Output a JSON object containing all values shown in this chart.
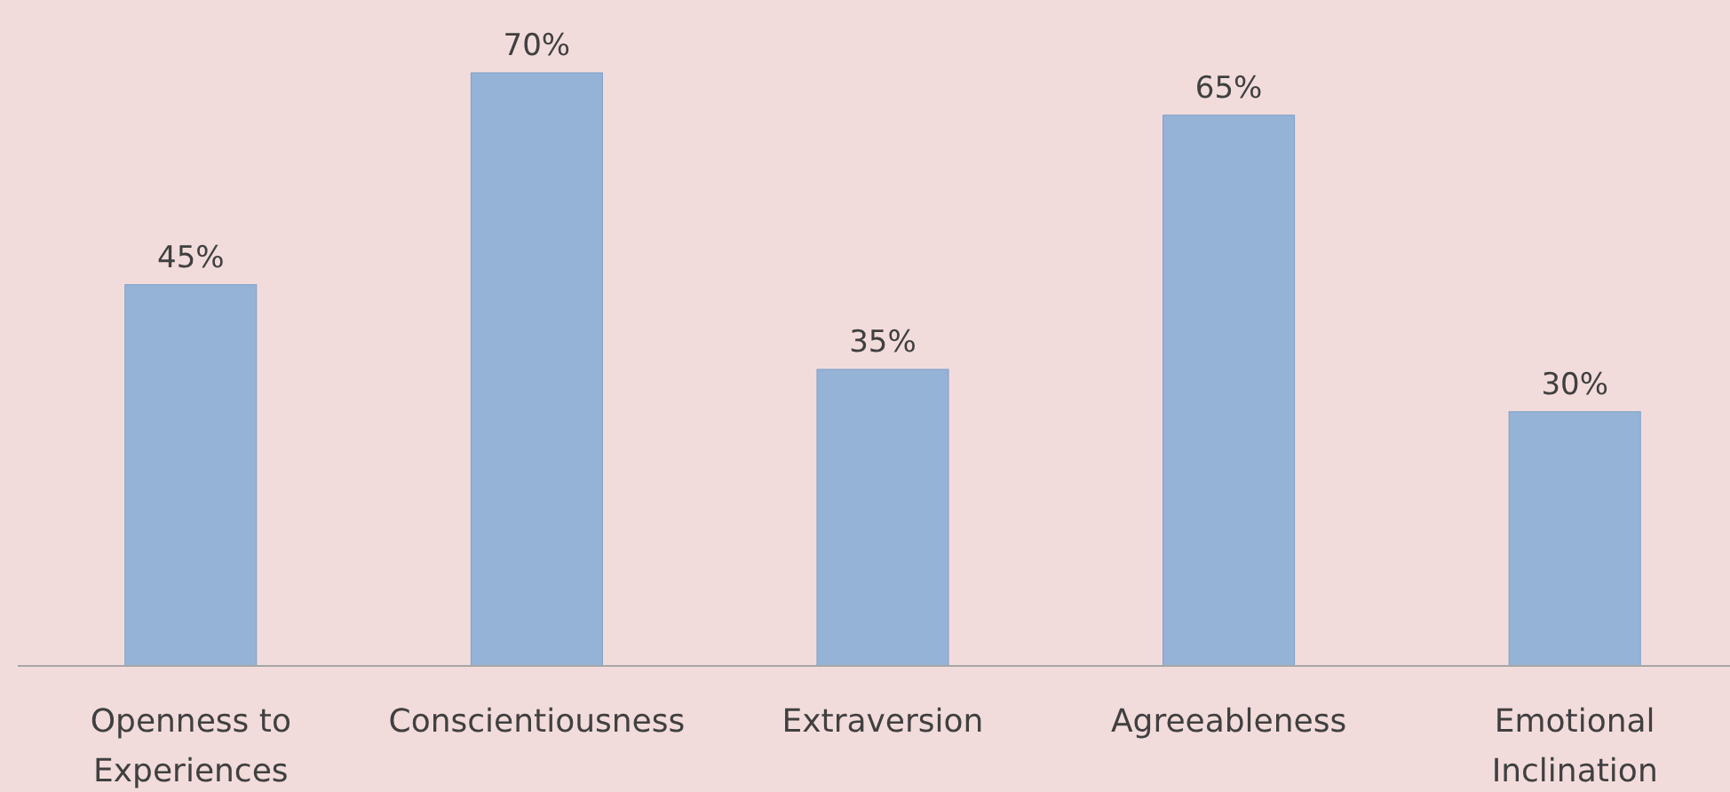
{
  "chart_data": {
    "type": "bar",
    "categories": [
      "Openness to Experiences",
      "Conscientiousness",
      "Extraversion",
      "Agreeableness",
      "Emotional Inclination"
    ],
    "values": [
      45,
      70,
      35,
      65,
      30
    ],
    "value_labels": [
      "45%",
      "70%",
      "35%",
      "65%",
      "30%"
    ],
    "color": "#95b3d7"
  }
}
